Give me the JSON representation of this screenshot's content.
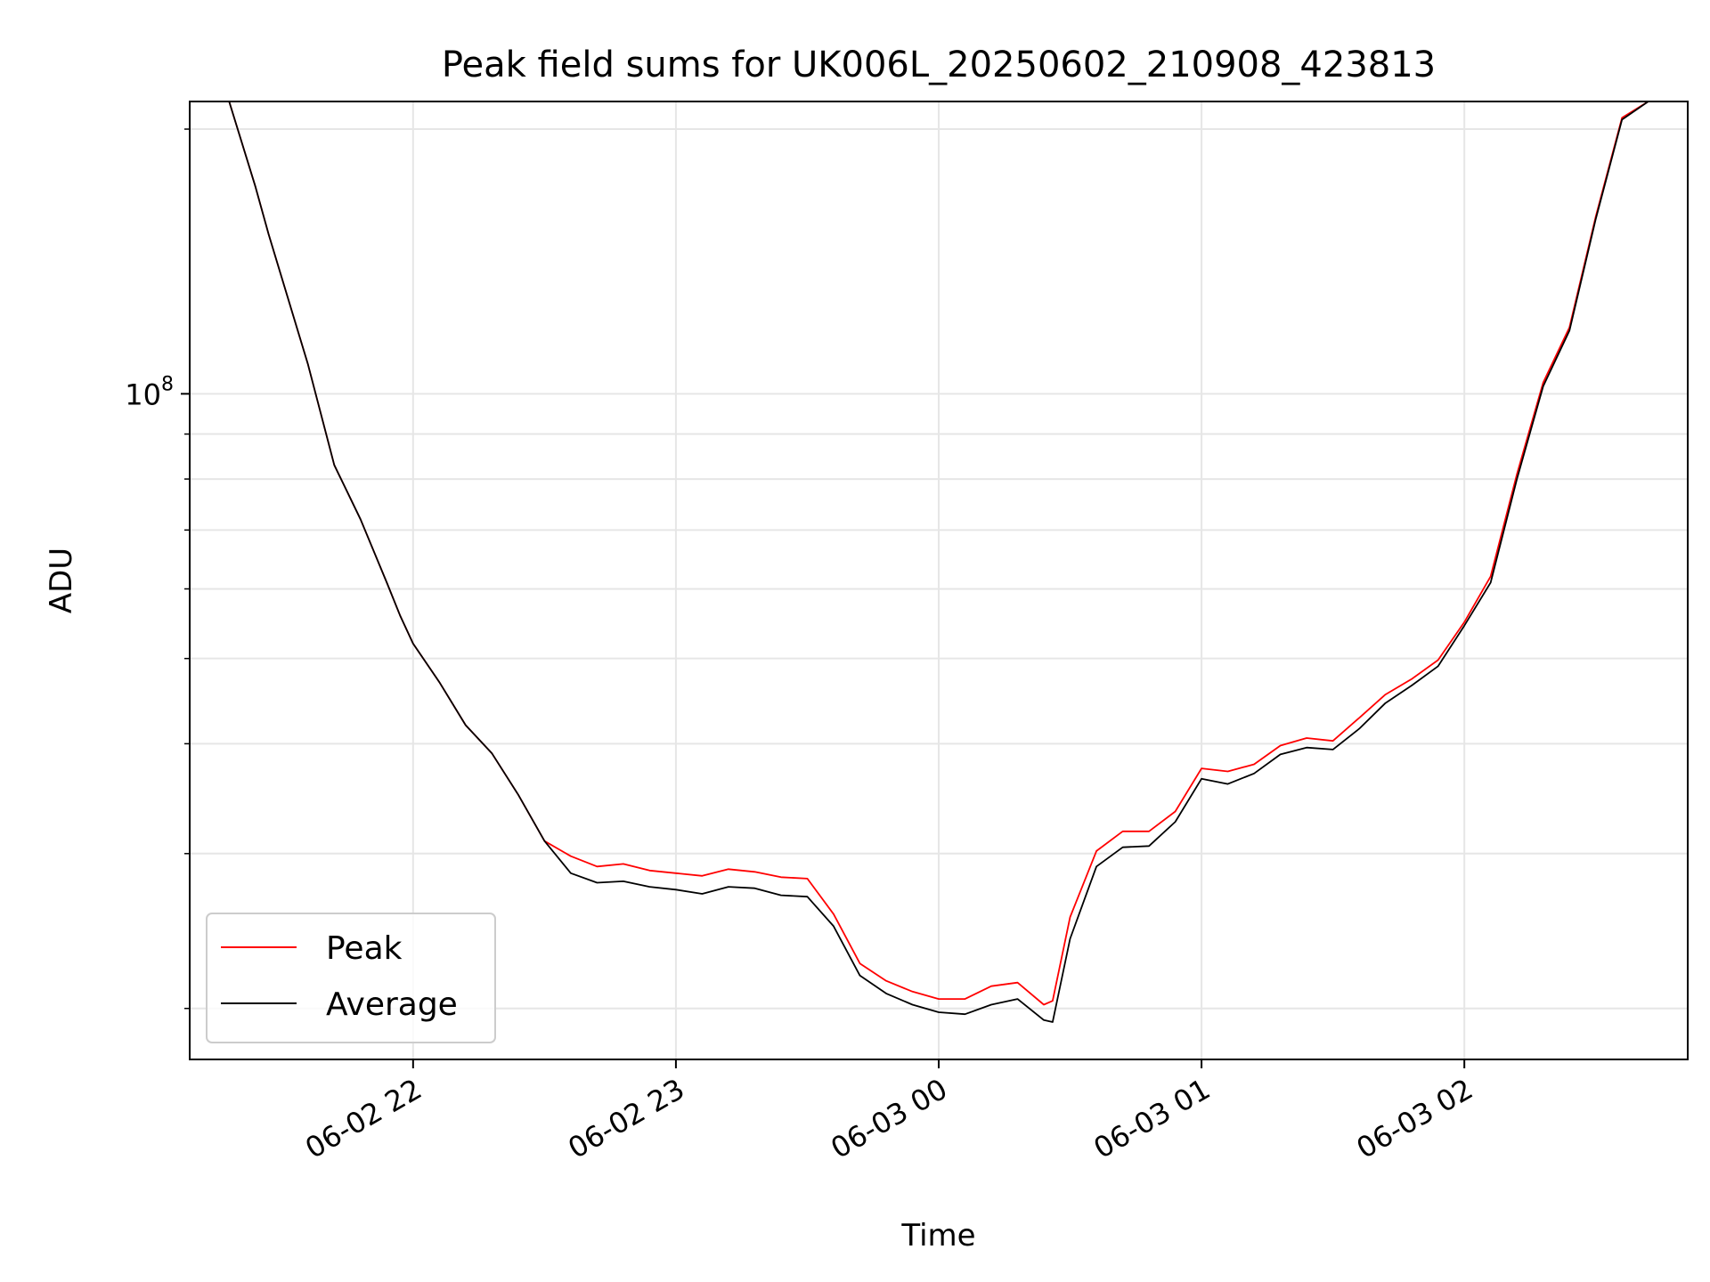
{
  "chart_data": {
    "type": "line",
    "title": "Peak field sums for UK006L_20250602_210908_423813",
    "xlabel": "Time",
    "ylabel": "ADU",
    "yscale": "log",
    "ylim": [
      17500000,
      215000000
    ],
    "xlim": [
      "2025-06-02 21:09",
      "2025-06-03 02:51"
    ],
    "grid": true,
    "legend": "lower-left",
    "x_ticks": [
      "06-02 22",
      "06-02 23",
      "06-03 00",
      "06-03 01",
      "06-03 02"
    ],
    "y_ticks": [
      "10^8"
    ],
    "x": [
      "2025-06-02 21:18",
      "2025-06-02 21:24",
      "2025-06-02 21:27",
      "2025-06-02 21:36",
      "2025-06-02 21:42",
      "2025-06-02 21:48",
      "2025-06-02 21:54",
      "2025-06-02 21:57",
      "2025-06-02 22:00",
      "2025-06-02 22:06",
      "2025-06-02 22:12",
      "2025-06-02 22:18",
      "2025-06-02 22:24",
      "2025-06-02 22:30",
      "2025-06-02 22:36",
      "2025-06-02 22:42",
      "2025-06-02 22:48",
      "2025-06-02 22:54",
      "2025-06-02 23:00",
      "2025-06-02 23:06",
      "2025-06-02 23:12",
      "2025-06-02 23:18",
      "2025-06-02 23:24",
      "2025-06-02 23:30",
      "2025-06-02 23:36",
      "2025-06-02 23:42",
      "2025-06-02 23:48",
      "2025-06-02 23:54",
      "2025-06-03 00:00",
      "2025-06-03 00:06",
      "2025-06-03 00:12",
      "2025-06-03 00:18",
      "2025-06-03 00:24",
      "2025-06-03 00:26",
      "2025-06-03 00:30",
      "2025-06-03 00:36",
      "2025-06-03 00:42",
      "2025-06-03 00:48",
      "2025-06-03 00:54",
      "2025-06-03 01:00",
      "2025-06-03 01:06",
      "2025-06-03 01:12",
      "2025-06-03 01:18",
      "2025-06-03 01:24",
      "2025-06-03 01:30",
      "2025-06-03 01:36",
      "2025-06-03 01:42",
      "2025-06-03 01:48",
      "2025-06-03 01:54",
      "2025-06-03 02:00",
      "2025-06-03 02:06",
      "2025-06-03 02:12",
      "2025-06-03 02:18",
      "2025-06-03 02:24",
      "2025-06-03 02:30",
      "2025-06-03 02:36",
      "2025-06-03 02:42"
    ],
    "series": [
      {
        "name": "Peak",
        "color": "#ff0000",
        "values": [
          215000000,
          172000000,
          152000000,
          108000000,
          83000000,
          72000000,
          61000000,
          56000000,
          52000000,
          47000000,
          42000000,
          39000000,
          35000000,
          31000000,
          29800000,
          29000000,
          29200000,
          28700000,
          28500000,
          28300000,
          28800000,
          28600000,
          28200000,
          28100000,
          25600000,
          22500000,
          21500000,
          20900000,
          20500000,
          20500000,
          21200000,
          21400000,
          20200000,
          20400000,
          25400000,
          30200000,
          31800000,
          31800000,
          33500000,
          37500000,
          37200000,
          37900000,
          39800000,
          40600000,
          40300000,
          42800000,
          45500000,
          47400000,
          49800000,
          55000000,
          62000000,
          81000000,
          103000000,
          119000000,
          159000000,
          206000000,
          215000000
        ]
      },
      {
        "name": "Average",
        "color": "#000000",
        "values": [
          215000000,
          172000000,
          152000000,
          108000000,
          83000000,
          72000000,
          61000000,
          56000000,
          52000000,
          47000000,
          42000000,
          39000000,
          35000000,
          31000000,
          28500000,
          27800000,
          27900000,
          27500000,
          27300000,
          27000000,
          27500000,
          27400000,
          26900000,
          26800000,
          24800000,
          21800000,
          20800000,
          20200000,
          19800000,
          19700000,
          20200000,
          20500000,
          19400000,
          19300000,
          24000000,
          29000000,
          30500000,
          30600000,
          32600000,
          36500000,
          36000000,
          37000000,
          38900000,
          39600000,
          39400000,
          41600000,
          44500000,
          46600000,
          49000000,
          54500000,
          61000000,
          80000000,
          102000000,
          118000000,
          158000000,
          205000000,
          215000000
        ]
      }
    ]
  }
}
